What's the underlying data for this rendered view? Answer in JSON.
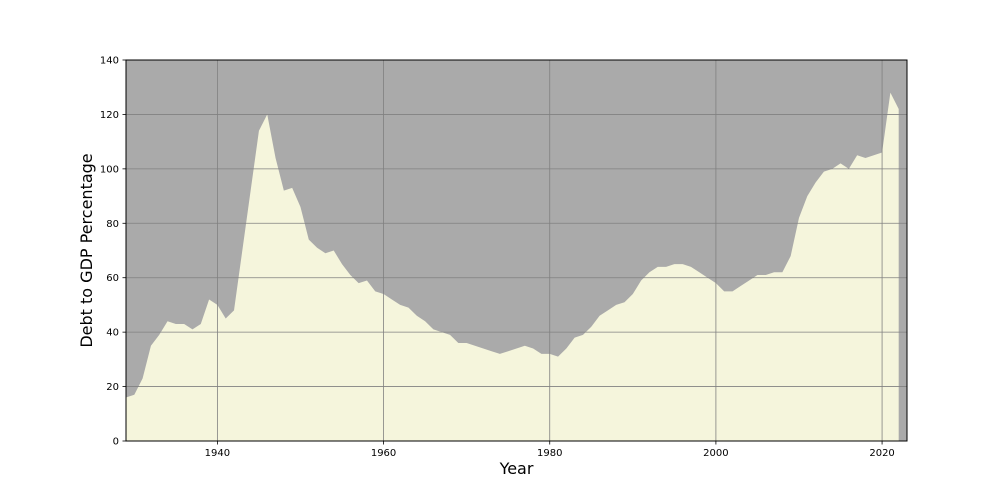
{
  "chart_data": {
    "type": "area",
    "title": "",
    "xlabel": "Year",
    "ylabel": "Debt to GDP Percentage",
    "xlim": [
      1929,
      2023
    ],
    "ylim": [
      0,
      140
    ],
    "xticks": [
      1940,
      1960,
      1980,
      2000,
      2020
    ],
    "yticks": [
      0,
      20,
      40,
      60,
      80,
      100,
      120,
      140
    ],
    "grid": true,
    "legend": "none",
    "colors": {
      "area": "#f5f5dc",
      "background": "#aaaaaa",
      "grid": "#808080",
      "axes": "#000000"
    },
    "series": [
      {
        "x": [
          1929,
          1930,
          1931,
          1932,
          1933,
          1934,
          1935,
          1936,
          1937,
          1938,
          1939,
          1940,
          1941,
          1942,
          1943,
          1944,
          1945,
          1946,
          1947,
          1948,
          1949,
          1950,
          1951,
          1952,
          1953,
          1954,
          1955,
          1956,
          1957,
          1958,
          1959,
          1960,
          1961,
          1962,
          1963,
          1964,
          1965,
          1966,
          1967,
          1968,
          1969,
          1970,
          1971,
          1972,
          1973,
          1974,
          1975,
          1976,
          1977,
          1978,
          1979,
          1980,
          1981,
          1982,
          1983,
          1984,
          1985,
          1986,
          1987,
          1988,
          1989,
          1990,
          1991,
          1992,
          1993,
          1994,
          1995,
          1996,
          1997,
          1998,
          1999,
          2000,
          2001,
          2002,
          2003,
          2004,
          2005,
          2006,
          2007,
          2008,
          2009,
          2010,
          2011,
          2012,
          2013,
          2014,
          2015,
          2016,
          2017,
          2018,
          2019,
          2020,
          2021,
          2022
        ],
        "values": [
          16,
          17,
          23,
          35,
          39,
          44,
          43,
          43,
          41,
          43,
          52,
          50,
          45,
          48,
          70,
          92,
          114,
          120,
          104,
          92,
          93,
          86,
          74,
          71,
          69,
          70,
          65,
          61,
          58,
          59,
          55,
          54,
          52,
          50,
          49,
          46,
          44,
          41,
          40,
          39,
          36,
          36,
          35,
          34,
          33,
          32,
          33,
          34,
          35,
          34,
          32,
          32,
          31,
          34,
          38,
          39,
          42,
          46,
          48,
          50,
          51,
          54,
          59,
          62,
          64,
          64,
          65,
          65,
          64,
          62,
          60,
          58,
          55,
          55,
          57,
          59,
          61,
          61,
          62,
          62,
          68,
          82,
          90,
          95,
          99,
          100,
          102,
          100,
          105,
          104,
          105,
          106,
          128,
          122
        ]
      }
    ]
  }
}
